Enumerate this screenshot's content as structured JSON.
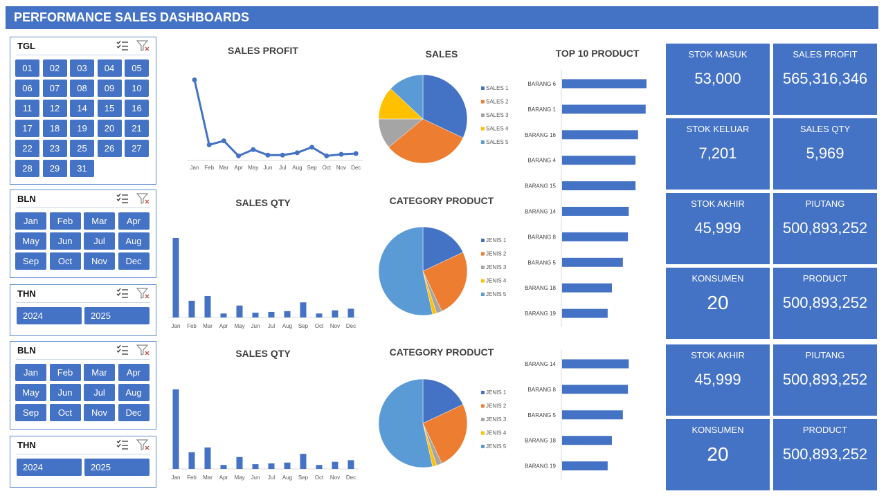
{
  "header": {
    "title": "PERFORMANCE SALES DASHBOARDS"
  },
  "slicers": {
    "tgl": {
      "title": "TGL",
      "items": [
        "01",
        "02",
        "03",
        "04",
        "05",
        "06",
        "07",
        "08",
        "09",
        "10",
        "11",
        "12",
        "14",
        "15",
        "16",
        "17",
        "18",
        "19",
        "20",
        "21",
        "22",
        "23",
        "25",
        "26",
        "27",
        "28",
        "29",
        "31"
      ]
    },
    "bln1": {
      "title": "BLN",
      "items": [
        "Jan",
        "Feb",
        "Mar",
        "Apr",
        "May",
        "Jun",
        "Jul",
        "Aug",
        "Sep",
        "Oct",
        "Nov",
        "Dec"
      ]
    },
    "thn1": {
      "title": "THN",
      "items": [
        "2024",
        "2025"
      ]
    },
    "bln2": {
      "title": "BLN",
      "items": [
        "Jan",
        "Feb",
        "Mar",
        "Apr",
        "May",
        "Jun",
        "Jul",
        "Aug",
        "Sep",
        "Oct",
        "Nov",
        "Dec"
      ]
    },
    "thn2": {
      "title": "THN",
      "items": [
        "2024",
        "2025"
      ]
    }
  },
  "kpis": {
    "stok_masuk": {
      "label": "STOK MASUK",
      "value": "53,000"
    },
    "sales_profit": {
      "label": "SALES PROFIT",
      "value": "565,316,346"
    },
    "stok_keluar": {
      "label": "STOK KELUAR",
      "value": "7,201"
    },
    "sales_qty": {
      "label": "SALES QTY",
      "value": "5,969"
    },
    "stok_akhir": {
      "label": "STOK AKHIR",
      "value": "45,999"
    },
    "piutang": {
      "label": "PIUTANG",
      "value": "500,893,252"
    },
    "konsumen": {
      "label": "KONSUMEN",
      "value": "20"
    },
    "product": {
      "label": "PRODUCT",
      "value": "500,893,252"
    },
    "stok_akhir_2": {
      "label": "STOK AKHIR",
      "value": "45,999"
    },
    "piutang_2": {
      "label": "PIUTANG",
      "value": "500,893,252"
    },
    "konsumen_2": {
      "label": "KONSUMEN",
      "value": "20"
    },
    "product_2": {
      "label": "PRODUCT",
      "value": "500,893,252"
    }
  },
  "colors": {
    "accent": "#4472C4",
    "orange": "#ED7D31",
    "gray": "#A5A5A5",
    "gold": "#FFC000",
    "lightblue": "#5B9BD5"
  },
  "chart_data": [
    {
      "id": "sales_profit",
      "type": "line",
      "title": "SALES PROFIT",
      "categories": [
        "Jan",
        "Feb",
        "Mar",
        "Apr",
        "May",
        "Jun",
        "Jul",
        "Aug",
        "Sep",
        "Oct",
        "Nov",
        "Dec"
      ],
      "values": [
        100,
        18,
        23,
        4,
        12,
        5,
        5,
        8,
        15,
        4,
        6,
        7
      ],
      "ylim": [
        0,
        110
      ]
    },
    {
      "id": "sales_pie",
      "type": "pie",
      "title": "SALES",
      "labels": [
        "SALES 1",
        "SALES 2",
        "SALES 3",
        "SALES 4",
        "SALES 5"
      ],
      "values": [
        32,
        32,
        11,
        12,
        13
      ]
    },
    {
      "id": "top10",
      "type": "bar",
      "orientation": "horizontal",
      "title": "TOP 10 PRODUCT",
      "categories": [
        "BARANG 6",
        "BARANG 1",
        "BARANG 16",
        "BARANG 4",
        "BARANG 15",
        "BARANG 14",
        "BARANG 8",
        "BARANG 5",
        "BARANG 18",
        "BARANG 19"
      ],
      "values": [
        100,
        99,
        90,
        87,
        87,
        79,
        78,
        72,
        59,
        54
      ],
      "xlim": [
        0,
        100
      ]
    },
    {
      "id": "sales_qty_1",
      "type": "bar",
      "title": "SALES QTY",
      "categories": [
        "Jan",
        "Feb",
        "Mar",
        "Apr",
        "May",
        "Jun",
        "Jul",
        "Aug",
        "Sep",
        "Oct",
        "Nov",
        "Dec"
      ],
      "values": [
        100,
        21,
        27,
        5,
        15,
        6,
        7,
        8,
        19,
        5,
        9,
        11
      ],
      "ylim": [
        0,
        100
      ]
    },
    {
      "id": "category_pie_1",
      "type": "pie",
      "title": "CATEGORY PRODUCT",
      "labels": [
        "JENIS 1",
        "JENIS 2",
        "JENIS 3",
        "JENIS 4",
        "JENIS 5"
      ],
      "values": [
        18,
        25,
        2,
        1.5,
        53.5
      ]
    },
    {
      "id": "sales_qty_2",
      "type": "bar",
      "title": "SALES QTY",
      "categories": [
        "Jan",
        "Feb",
        "Mar",
        "Apr",
        "May",
        "Jun",
        "Jul",
        "Aug",
        "Sep",
        "Oct",
        "Nov",
        "Dec"
      ],
      "values": [
        100,
        21,
        27,
        5,
        15,
        6,
        7,
        8,
        19,
        5,
        9,
        11
      ],
      "ylim": [
        0,
        100
      ]
    },
    {
      "id": "category_pie_2",
      "type": "pie",
      "title": "CATEGORY PRODUCT",
      "labels": [
        "JENIS 1",
        "JENIS 2",
        "JENIS 3",
        "JENIS 4",
        "JENIS 5"
      ],
      "values": [
        18,
        25,
        2,
        1.5,
        53.5
      ]
    },
    {
      "id": "top5",
      "type": "bar",
      "orientation": "horizontal",
      "title": "",
      "categories": [
        "BARANG 14",
        "BARANG 8",
        "BARANG 5",
        "BARANG 18",
        "BARANG 19"
      ],
      "values": [
        79,
        78,
        72,
        59,
        54
      ],
      "xlim": [
        0,
        100
      ]
    }
  ]
}
